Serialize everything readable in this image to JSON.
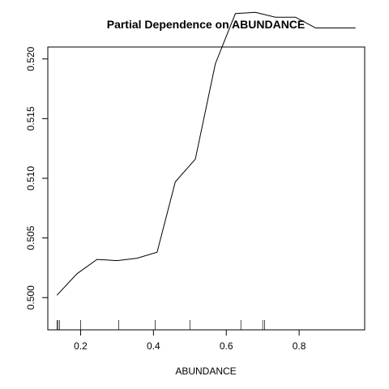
{
  "chart_data": {
    "type": "line",
    "title": "Partial Dependence on ABUNDANCE",
    "xlabel": "ABUNDANCE",
    "ylabel": "",
    "xlim": [
      0.11,
      0.98
    ],
    "ylim": [
      0.4973,
      0.521
    ],
    "x_ticks": [
      0.2,
      0.4,
      0.6,
      0.8
    ],
    "x_tick_labels": [
      "0.2",
      "0.4",
      "0.6",
      "0.8"
    ],
    "y_ticks": [
      0.5,
      0.505,
      0.51,
      0.515,
      0.52
    ],
    "y_tick_labels": [
      "0.500",
      "0.505",
      "0.510",
      "0.515",
      "0.520"
    ],
    "grid": false,
    "legend": "none",
    "line_color": "#000000",
    "series": [
      {
        "x": [
          0.135,
          0.19,
          0.245,
          0.3,
          0.355,
          0.41,
          0.46,
          0.515,
          0.57,
          0.625,
          0.68,
          0.735,
          0.79,
          0.845,
          0.9,
          0.955
        ],
        "y": [
          0.5002,
          0.502,
          0.5032,
          0.5031,
          0.5033,
          0.5038,
          0.5097,
          0.5116,
          0.5196,
          0.5238,
          0.5239,
          0.5235,
          0.5235,
          0.5226,
          0.5226,
          0.5226
        ]
      }
    ],
    "rug": [
      0.135,
      0.138,
      0.142,
      0.2,
      0.305,
      0.405,
      0.5,
      0.64,
      0.7,
      0.705
    ]
  }
}
